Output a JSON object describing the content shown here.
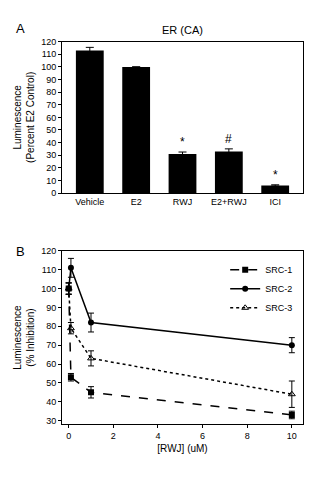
{
  "chart_data": [
    {
      "type": "bar",
      "panel": "A",
      "title": "ER (CA)",
      "y_label": "Luminescence\n(Percent E2 Control)",
      "categories": [
        "Vehicle",
        "E2",
        "RWJ",
        "E2+RWJ",
        "ICI"
      ],
      "values": [
        113,
        100,
        31,
        33,
        6
      ],
      "errors": [
        2.5,
        0,
        1.5,
        2,
        0.5
      ],
      "color": "#000000",
      "ylim": [
        0,
        120
      ],
      "yticks": [
        0,
        10,
        20,
        30,
        40,
        50,
        60,
        70,
        80,
        90,
        100,
        110,
        120
      ],
      "grid": false,
      "annotations": [
        {
          "category": "RWJ",
          "text": "*"
        },
        {
          "category": "E2+RWJ",
          "text": "#"
        },
        {
          "category": "ICI",
          "text": "*"
        }
      ]
    },
    {
      "type": "line",
      "panel": "B",
      "x_label": "[RWJ] (uM)",
      "y_label": "Luminescence\n(% Inhibition)",
      "x": [
        0,
        0.1,
        1,
        10
      ],
      "series": [
        {
          "name": "SRC-1",
          "color": "#000000",
          "marker": "square",
          "line_style": "dash",
          "values": [
            100,
            53,
            45,
            33
          ],
          "errors": [
            3,
            2,
            3,
            2
          ]
        },
        {
          "name": "SRC-2",
          "color": "#000000",
          "marker": "circle",
          "line_style": "solid",
          "values": [
            100,
            111,
            82,
            70
          ],
          "errors": [
            3,
            5,
            5,
            4
          ]
        },
        {
          "name": "SRC-3",
          "color": "#000000",
          "marker": "triangle-up-open",
          "line_style": "dot",
          "values": [
            100,
            79,
            63,
            44
          ],
          "errors": [
            3,
            3,
            4,
            7
          ]
        }
      ],
      "xlim": [
        -0.3,
        10.5
      ],
      "xticks": [
        0,
        2,
        4,
        6,
        8,
        10
      ],
      "ylim": [
        28,
        120
      ],
      "yticks": [
        30,
        40,
        50,
        60,
        70,
        80,
        90,
        100,
        110,
        120
      ],
      "grid": false,
      "legend": "upper right"
    }
  ]
}
